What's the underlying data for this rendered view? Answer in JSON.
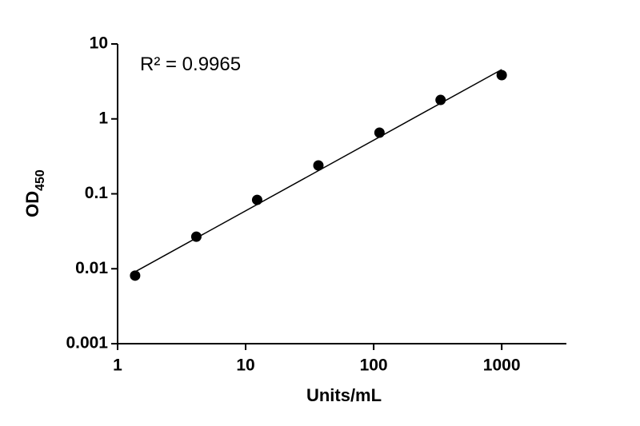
{
  "chart_data": {
    "type": "scatter",
    "x_label": "Units/mL",
    "y_label": "OD",
    "y_label_subscript": "450",
    "annotation": "R² = 0.9965",
    "xscale": "log",
    "yscale": "log",
    "xlim": [
      1,
      3200
    ],
    "ylim": [
      0.001,
      10
    ],
    "xticks": [
      1,
      10,
      100,
      1000
    ],
    "yticks": [
      0.001,
      0.01,
      0.1,
      1,
      10
    ],
    "color": "#000000",
    "x": [
      1.37,
      4.12,
      12.3,
      37,
      111,
      333,
      1000
    ],
    "values": [
      0.0081,
      0.0268,
      0.083,
      0.239,
      0.655,
      1.79,
      3.84
    ],
    "fit_line": {
      "x": [
        1.37,
        1000
      ],
      "values": [
        0.0091,
        4.56
      ]
    }
  }
}
